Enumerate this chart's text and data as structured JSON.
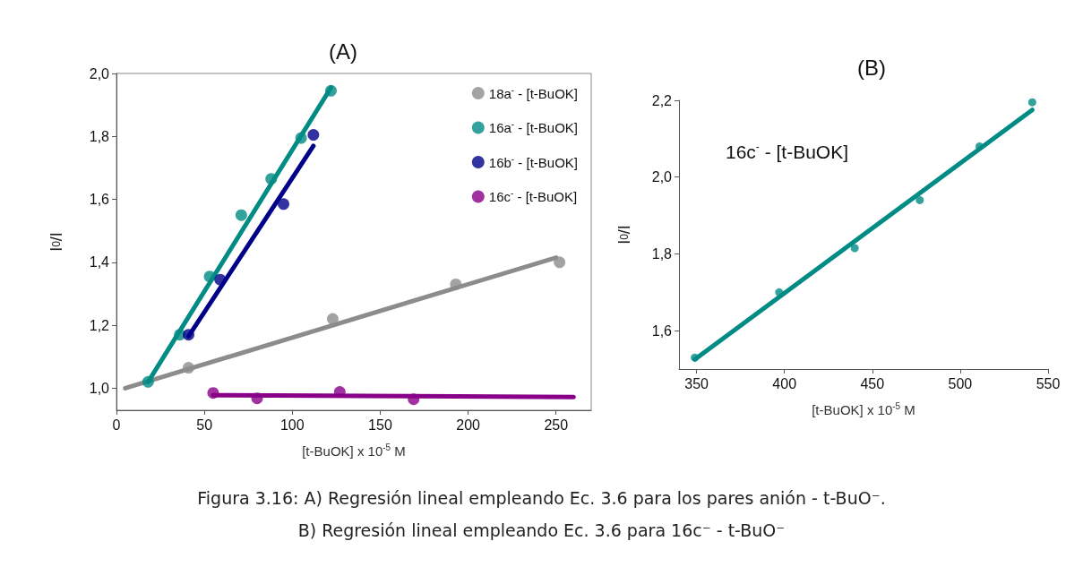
{
  "chart_data": [
    {
      "type": "scatter",
      "title": "(A)",
      "xlabel": "[t-BuOK] x 10$^{-5}$ M",
      "ylabel": "I$_{0}$/I",
      "xlim": [
        0,
        270
      ],
      "xticks": [
        0,
        50,
        100,
        150,
        200,
        250
      ],
      "ylim": [
        0.93,
        2.0
      ],
      "yticks": [
        {
          "value": 1.0,
          "label": "1,0"
        },
        {
          "value": 1.2,
          "label": "1,2"
        },
        {
          "value": 1.4,
          "label": "1,4"
        },
        {
          "value": 1.6,
          "label": "1,6"
        },
        {
          "value": 1.8,
          "label": "1,8"
        },
        {
          "value": 2.0,
          "label": "2,0"
        }
      ],
      "grid": false,
      "legend": "top right",
      "marker": "circle",
      "series": [
        {
          "name": "18a$^{-}$ - [t-BuOK]",
          "color": "#8c8c8c",
          "x": [
            41,
            123,
            193,
            252
          ],
          "values": [
            1.065,
            1.22,
            1.33,
            1.4
          ]
        },
        {
          "name": "16a$^{-}$ - [t-BuOK]",
          "color": "#008b84",
          "x": [
            18,
            36,
            53,
            71,
            88,
            105,
            122
          ],
          "values": [
            1.02,
            1.17,
            1.355,
            1.55,
            1.665,
            1.795,
            1.945
          ]
        },
        {
          "name": "16b$^{-}$ - [t-BuOK]",
          "color": "#000088",
          "x": [
            41,
            59,
            95,
            112
          ],
          "values": [
            1.17,
            1.345,
            1.585,
            1.805
          ]
        },
        {
          "name": "16c$^{-}$ - [t-BuOK]",
          "color": "#880088",
          "x": [
            55,
            80,
            127,
            169
          ],
          "values": [
            0.985,
            0.968,
            0.988,
            0.965
          ]
        },
        {
          "type": "line",
          "marker": "none",
          "line_style": "solid",
          "color": "#8c8c8c",
          "x": [
            5,
            250
          ],
          "values": [
            1.0,
            1.415
          ]
        },
        {
          "type": "line",
          "marker": "none",
          "line_style": "solid",
          "color": "#008b84",
          "x": [
            18,
            122
          ],
          "values": [
            1.02,
            1.955
          ]
        },
        {
          "type": "line",
          "marker": "none",
          "line_style": "solid",
          "color": "#000088",
          "x": [
            41,
            112
          ],
          "values": [
            1.165,
            1.77
          ]
        },
        {
          "type": "line",
          "marker": "none",
          "line_style": "solid",
          "color": "#880088",
          "x": [
            55,
            260
          ],
          "values": [
            0.978,
            0.972
          ]
        }
      ],
      "annotations": [
        "Figura 3.16: A) Regresión lineal empleando Ec. 3.6 para los pares anión - t-BuO⁻.",
        "B) Regresión lineal empleando Ec. 3.6 para 16c⁻ - t-BuO⁻"
      ]
    },
    {
      "type": "scatter",
      "title": "(B)",
      "xlabel": "[t-BuOK] x 10$^{-5}$ M",
      "ylabel": "I$_{0}$/I",
      "xlim": [
        340,
        550
      ],
      "xticks": [
        350,
        400,
        450,
        500,
        550
      ],
      "ylim": [
        1.5,
        2.2
      ],
      "yticks": [
        {
          "value": 1.6,
          "label": "1,6"
        },
        {
          "value": 1.8,
          "label": "1,8"
        },
        {
          "value": 2.0,
          "label": "2,0"
        },
        {
          "value": 2.2,
          "label": "2,2"
        }
      ],
      "grid": false,
      "marker": "circle",
      "series": [
        {
          "color": "#008b84",
          "x": [
            349,
            397,
            440,
            477,
            511,
            541
          ],
          "values": [
            1.53,
            1.7,
            1.815,
            1.94,
            2.08,
            2.195
          ]
        },
        {
          "type": "line",
          "marker": "none",
          "line_style": "solid",
          "color": "#008b84",
          "x": [
            349,
            541
          ],
          "values": [
            1.525,
            2.175
          ]
        }
      ],
      "annotations": [
        "16c$^{-}$ - [t-BuOK]"
      ]
    }
  ]
}
